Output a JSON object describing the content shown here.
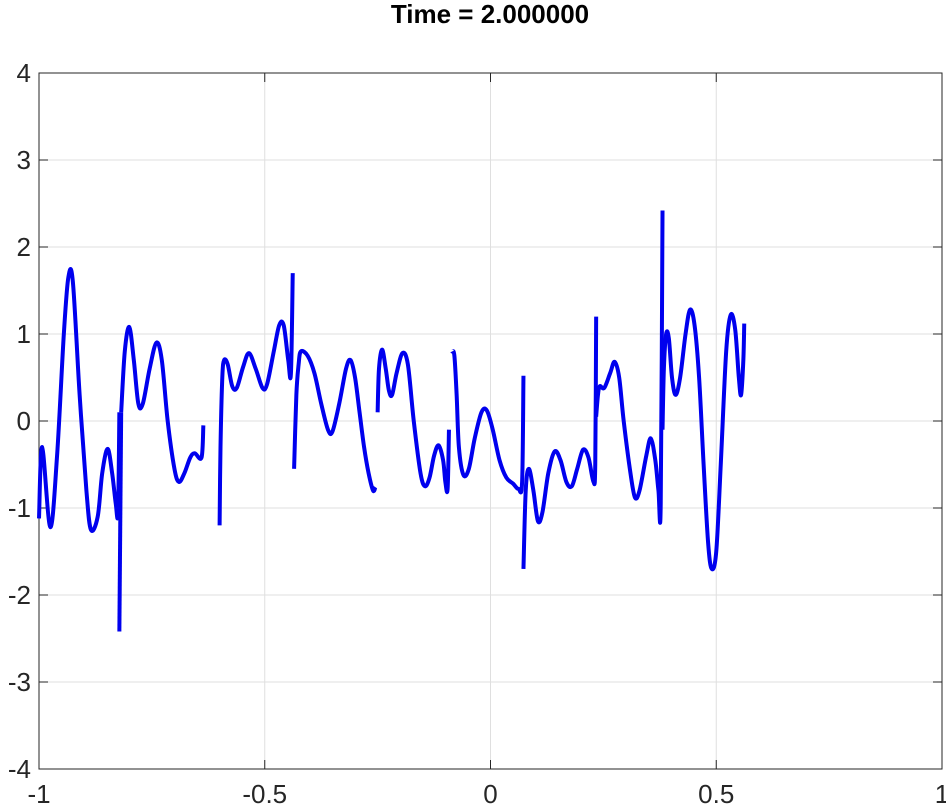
{
  "chart_data": {
    "type": "line",
    "title": "Time = 2.000000",
    "xlabel": "",
    "ylabel": "",
    "xlim": [
      -1,
      1
    ],
    "ylim": [
      -4,
      4
    ],
    "xticks": [
      -1,
      -0.5,
      0,
      0.5,
      1
    ],
    "xtick_labels": [
      "-1",
      "-0.5",
      "0",
      "0.5",
      "1"
    ],
    "yticks": [
      -4,
      -3,
      -2,
      -1,
      0,
      1,
      2,
      3,
      4
    ],
    "ytick_labels": [
      "-4",
      "-3",
      "-2",
      "-1",
      "0",
      "1",
      "2",
      "3",
      "4"
    ],
    "grid": true,
    "line_color": "#0000ee",
    "series": [
      {
        "segments": [
          [
            [
              -1.0,
              -1.12
            ],
            [
              -0.993,
              -0.3
            ],
            [
              -0.975,
              -1.22
            ],
            [
              -0.96,
              -0.4
            ],
            [
              -0.945,
              1.0
            ],
            [
              -0.935,
              1.65
            ],
            [
              -0.925,
              1.6
            ],
            [
              -0.91,
              0.3
            ],
            [
              -0.895,
              -0.8
            ],
            [
              -0.885,
              -1.25
            ],
            [
              -0.87,
              -1.1
            ],
            [
              -0.86,
              -0.6
            ],
            [
              -0.848,
              -0.32
            ],
            [
              -0.838,
              -0.6
            ],
            [
              -0.83,
              -0.95
            ],
            [
              -0.825,
              -1.05
            ],
            [
              -0.822,
              0.1
            ]
          ],
          [
            [
              -0.822,
              -2.42
            ],
            [
              -0.818,
              0.1
            ]
          ],
          [
            [
              -0.818,
              0.1
            ],
            [
              -0.81,
              0.8
            ],
            [
              -0.8,
              1.08
            ],
            [
              -0.79,
              0.7
            ],
            [
              -0.78,
              0.2
            ],
            [
              -0.77,
              0.2
            ],
            [
              -0.755,
              0.6
            ],
            [
              -0.74,
              0.9
            ],
            [
              -0.728,
              0.7
            ],
            [
              -0.715,
              0.0
            ],
            [
              -0.7,
              -0.55
            ],
            [
              -0.69,
              -0.7
            ],
            [
              -0.678,
              -0.6
            ],
            [
              -0.665,
              -0.42
            ],
            [
              -0.655,
              -0.37
            ],
            [
              -0.64,
              -0.42
            ],
            [
              -0.636,
              -0.05
            ]
          ],
          [
            [
              -0.6,
              -1.2
            ],
            [
              -0.598,
              -0.3
            ],
            [
              -0.594,
              0.5
            ],
            [
              -0.59,
              0.7
            ],
            [
              -0.582,
              0.65
            ],
            [
              -0.572,
              0.4
            ],
            [
              -0.562,
              0.38
            ],
            [
              -0.548,
              0.62
            ],
            [
              -0.535,
              0.78
            ],
            [
              -0.52,
              0.6
            ],
            [
              -0.505,
              0.38
            ],
            [
              -0.495,
              0.42
            ],
            [
              -0.48,
              0.8
            ],
            [
              -0.468,
              1.1
            ],
            [
              -0.458,
              1.1
            ],
            [
              -0.448,
              0.7
            ],
            [
              -0.442,
              0.55
            ],
            [
              -0.438,
              1.7
            ]
          ],
          [
            [
              -0.435,
              -0.55
            ],
            [
              -0.43,
              0.3
            ],
            [
              -0.425,
              0.65
            ],
            [
              -0.42,
              0.8
            ],
            [
              -0.405,
              0.75
            ],
            [
              -0.39,
              0.55
            ],
            [
              -0.375,
              0.2
            ],
            [
              -0.36,
              -0.1
            ],
            [
              -0.35,
              -0.12
            ],
            [
              -0.335,
              0.2
            ],
            [
              -0.32,
              0.6
            ],
            [
              -0.31,
              0.7
            ],
            [
              -0.3,
              0.5
            ],
            [
              -0.29,
              0.1
            ],
            [
              -0.28,
              -0.3
            ],
            [
              -0.27,
              -0.6
            ],
            [
              -0.26,
              -0.8
            ],
            [
              -0.255,
              -0.76
            ]
          ],
          [
            [
              -0.25,
              0.1
            ],
            [
              -0.247,
              0.6
            ],
            [
              -0.24,
              0.82
            ],
            [
              -0.232,
              0.6
            ],
            [
              -0.225,
              0.35
            ],
            [
              -0.218,
              0.3
            ],
            [
              -0.208,
              0.55
            ],
            [
              -0.195,
              0.78
            ],
            [
              -0.183,
              0.65
            ],
            [
              -0.17,
              0.0
            ],
            [
              -0.155,
              -0.6
            ],
            [
              -0.145,
              -0.75
            ],
            [
              -0.135,
              -0.65
            ],
            [
              -0.125,
              -0.4
            ],
            [
              -0.115,
              -0.28
            ],
            [
              -0.105,
              -0.45
            ],
            [
              -0.1,
              -0.7
            ],
            [
              -0.095,
              -0.78
            ],
            [
              -0.092,
              -0.1
            ]
          ],
          [
            [
              -0.085,
              0.8
            ],
            [
              -0.08,
              0.75
            ],
            [
              -0.075,
              0.3
            ],
            [
              -0.07,
              -0.3
            ],
            [
              -0.06,
              -0.62
            ],
            [
              -0.048,
              -0.55
            ],
            [
              -0.035,
              -0.2
            ],
            [
              -0.02,
              0.1
            ],
            [
              -0.008,
              0.12
            ],
            [
              0.005,
              -0.1
            ],
            [
              0.02,
              -0.45
            ],
            [
              0.035,
              -0.65
            ],
            [
              0.05,
              -0.72
            ],
            [
              0.062,
              -0.78
            ],
            [
              0.07,
              -0.7
            ],
            [
              0.073,
              0.52
            ]
          ],
          [
            [
              0.073,
              -1.7
            ],
            [
              0.078,
              -0.8
            ],
            [
              0.085,
              -0.55
            ],
            [
              0.095,
              -0.8
            ],
            [
              0.105,
              -1.15
            ],
            [
              0.115,
              -1.05
            ],
            [
              0.128,
              -0.6
            ],
            [
              0.142,
              -0.35
            ],
            [
              0.155,
              -0.45
            ],
            [
              0.168,
              -0.7
            ],
            [
              0.18,
              -0.75
            ],
            [
              0.192,
              -0.55
            ],
            [
              0.205,
              -0.33
            ],
            [
              0.217,
              -0.42
            ],
            [
              0.228,
              -0.7
            ],
            [
              0.232,
              -0.5
            ],
            [
              0.234,
              1.2
            ]
          ],
          [
            [
              0.234,
              0.05
            ],
            [
              0.238,
              0.3
            ],
            [
              0.242,
              0.4
            ],
            [
              0.252,
              0.38
            ],
            [
              0.265,
              0.55
            ],
            [
              0.275,
              0.68
            ],
            [
              0.285,
              0.5
            ],
            [
              0.295,
              0.0
            ],
            [
              0.31,
              -0.6
            ],
            [
              0.32,
              -0.88
            ],
            [
              0.33,
              -0.8
            ],
            [
              0.345,
              -0.4
            ],
            [
              0.355,
              -0.2
            ],
            [
              0.365,
              -0.45
            ],
            [
              0.372,
              -0.8
            ],
            [
              0.377,
              -0.95
            ],
            [
              0.381,
              2.42
            ]
          ],
          [
            [
              0.381,
              -0.1
            ],
            [
              0.384,
              0.6
            ],
            [
              0.389,
              1.0
            ],
            [
              0.395,
              0.95
            ],
            [
              0.402,
              0.5
            ],
            [
              0.41,
              0.3
            ],
            [
              0.42,
              0.5
            ],
            [
              0.432,
              1.0
            ],
            [
              0.442,
              1.28
            ],
            [
              0.452,
              1.1
            ],
            [
              0.462,
              0.5
            ],
            [
              0.472,
              -0.5
            ],
            [
              0.482,
              -1.4
            ],
            [
              0.49,
              -1.7
            ],
            [
              0.5,
              -1.5
            ],
            [
              0.51,
              -0.5
            ],
            [
              0.522,
              0.8
            ],
            [
              0.532,
              1.22
            ],
            [
              0.542,
              1.05
            ],
            [
              0.55,
              0.5
            ],
            [
              0.555,
              0.3
            ],
            [
              0.56,
              0.7
            ],
            [
              0.562,
              1.12
            ]
          ]
        ]
      }
    ]
  }
}
